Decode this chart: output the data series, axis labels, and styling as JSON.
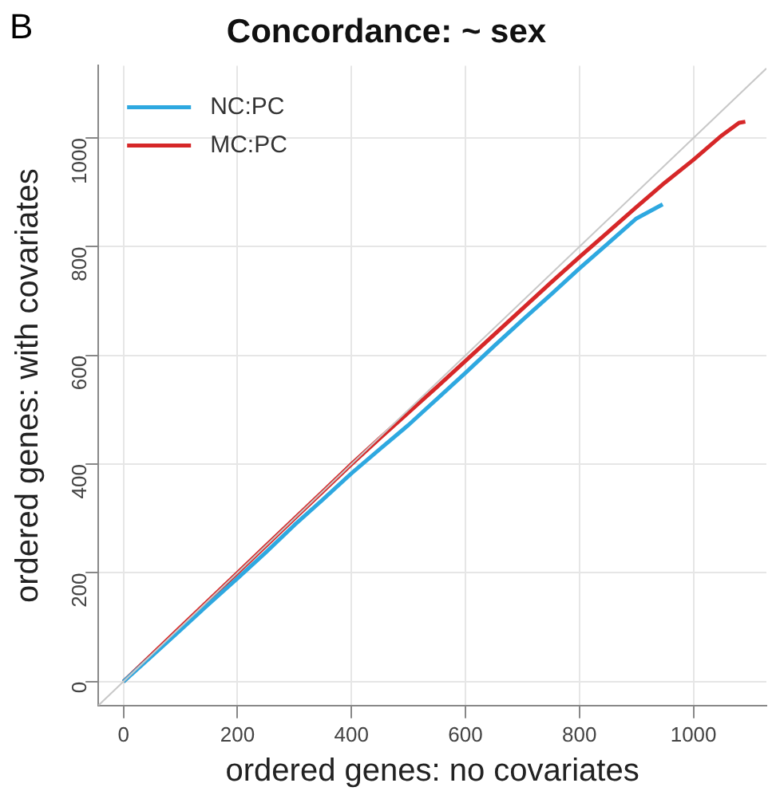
{
  "chart_data": {
    "type": "line",
    "title": "Concordance: ~ sex",
    "xlabel": "ordered genes: no covariates",
    "ylabel": "ordered genes: with covariates",
    "annotations": [
      "B"
    ],
    "xlim": [
      -44,
      1128
    ],
    "ylim": [
      -44,
      1133
    ],
    "xticks": [
      0,
      200,
      400,
      600,
      800,
      1000
    ],
    "yticks": [
      0,
      200,
      400,
      600,
      800,
      1000
    ],
    "grid": true,
    "legend": "top left",
    "marker": "none",
    "line_style": "solid",
    "series": [
      {
        "color": "#c8c8c8",
        "x": [
          -44,
          1128
        ],
        "values": [
          -44,
          1128
        ]
      },
      {
        "name": "NC:PC",
        "color": "#2ea8e0",
        "x": [
          0,
          50,
          100,
          150,
          200,
          250,
          300,
          350,
          400,
          450,
          500,
          550,
          600,
          650,
          700,
          750,
          800,
          850,
          900,
          946
        ],
        "values": [
          0,
          47,
          95,
          143,
          190,
          238,
          288,
          335,
          383,
          428,
          472,
          520,
          568,
          617,
          665,
          712,
          760,
          806,
          852,
          878
        ]
      },
      {
        "name": "MC:PC",
        "color": "#d62728",
        "x": [
          0,
          50,
          100,
          150,
          200,
          250,
          300,
          350,
          400,
          450,
          500,
          550,
          600,
          650,
          700,
          750,
          800,
          850,
          900,
          950,
          1000,
          1050,
          1080,
          1091
        ],
        "values": [
          0,
          50,
          100,
          150,
          200,
          250,
          300,
          350,
          400,
          448,
          495,
          542,
          590,
          638,
          686,
          734,
          781,
          827,
          873,
          918,
          960,
          1005,
          1028,
          1030
        ]
      }
    ]
  }
}
